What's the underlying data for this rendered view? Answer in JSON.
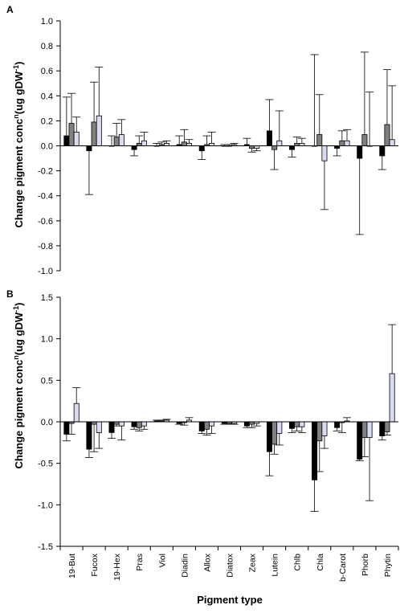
{
  "figure": {
    "xlabel": "Pigment type",
    "ylabel_main": "Change pigment conc",
    "ylabel_sup_n": "n",
    "ylabel_unit": "(ug gDW",
    "ylabel_sup_exp": "-1",
    "ylabel_close": ")"
  },
  "chart_data": [
    {
      "type": "bar",
      "panel": "A",
      "categories": [
        "19-But",
        "Fucox",
        "19-Hex",
        "Pras",
        "Viol",
        "Diadin",
        "Allox",
        "Diatox",
        "Zeax",
        "Lutein",
        "Chlb",
        "Chla",
        "b-Carot",
        "Phorb",
        "Phytin"
      ],
      "ylim": [
        -1.0,
        1.0
      ],
      "yticks": [
        -1.0,
        -0.8,
        -0.6,
        -0.4,
        -0.2,
        0.0,
        0.2,
        0.4,
        0.6,
        0.8,
        1.0
      ],
      "tick_labels": [
        "-1.0",
        "-0.8",
        "-0.6",
        "-0.4",
        "-0.2",
        "0.0",
        "0.2",
        "0.4",
        "0.6",
        "0.8",
        "1.0"
      ],
      "series": [
        {
          "color": "#000000",
          "values": [
            0.08,
            -0.04,
            0.0,
            -0.03,
            0.0,
            0.01,
            -0.04,
            0.0,
            0.01,
            0.12,
            -0.03,
            0.0,
            -0.02,
            -0.1,
            -0.08
          ],
          "errors": [
            0.31,
            0.35,
            0.08,
            0.05,
            0.02,
            0.07,
            0.07,
            0.01,
            0.05,
            0.25,
            0.06,
            0.73,
            0.06,
            0.61,
            0.11
          ]
        },
        {
          "color": "#808080",
          "values": [
            0.18,
            0.19,
            0.07,
            0.02,
            0.01,
            0.03,
            0.01,
            0.0,
            -0.02,
            -0.03,
            0.02,
            0.09,
            0.04,
            0.09,
            0.17
          ],
          "errors": [
            0.24,
            0.32,
            0.11,
            0.06,
            0.02,
            0.1,
            0.07,
            0.01,
            0.03,
            0.16,
            0.05,
            0.32,
            0.08,
            0.66,
            0.44
          ]
        },
        {
          "color": "#d9dcf0",
          "values": [
            0.11,
            0.24,
            0.09,
            0.04,
            0.02,
            0.02,
            0.02,
            0.01,
            -0.02,
            0.04,
            0.02,
            -0.12,
            0.04,
            0.0,
            0.05
          ],
          "errors": [
            0.12,
            0.39,
            0.12,
            0.07,
            0.02,
            0.03,
            0.09,
            0.01,
            0.02,
            0.24,
            0.04,
            0.39,
            0.09,
            0.43,
            0.43
          ]
        }
      ]
    },
    {
      "type": "bar",
      "panel": "B",
      "categories": [
        "19-But",
        "Fucox",
        "19-Hex",
        "Pras",
        "Viol",
        "Diadin",
        "Allox",
        "Diatox",
        "Zeax",
        "Lutein",
        "Chlb",
        "Chla",
        "b-Carot",
        "Phorb",
        "Phytin"
      ],
      "ylim": [
        -1.5,
        1.5
      ],
      "yticks": [
        -1.5,
        -1.0,
        -0.5,
        0.0,
        0.5,
        1.0,
        1.5
      ],
      "tick_labels": [
        "-1.5",
        "-1.0",
        "-0.5",
        "0.0",
        "0.5",
        "1.0",
        "1.5"
      ],
      "series": [
        {
          "color": "#000000",
          "values": [
            -0.15,
            -0.33,
            -0.13,
            -0.06,
            0.01,
            -0.02,
            -0.11,
            -0.02,
            -0.05,
            -0.36,
            -0.08,
            -0.7,
            -0.07,
            -0.45,
            -0.17
          ],
          "errors": [
            0.08,
            0.1,
            0.07,
            0.03,
            0.01,
            0.01,
            0.03,
            0.01,
            0.02,
            0.29,
            0.05,
            0.38,
            0.04,
            0.02,
            0.05
          ]
        },
        {
          "color": "#808080",
          "values": [
            -0.02,
            -0.03,
            -0.03,
            -0.07,
            0.01,
            -0.01,
            -0.09,
            -0.02,
            -0.03,
            -0.27,
            -0.06,
            -0.23,
            -0.01,
            -0.19,
            -0.12
          ],
          "errors": [
            0.13,
            0.33,
            0.02,
            0.04,
            0.01,
            0.03,
            0.07,
            0.01,
            0.04,
            0.12,
            0.05,
            0.37,
            0.12,
            0.23,
            0.04
          ]
        },
        {
          "color": "#d9dcf0",
          "values": [
            0.22,
            -0.13,
            -0.05,
            -0.05,
            0.02,
            0.02,
            -0.05,
            -0.02,
            -0.02,
            -0.14,
            -0.06,
            -0.17,
            0.01,
            -0.19,
            0.58
          ],
          "errors": [
            0.19,
            0.19,
            0.17,
            0.04,
            0.01,
            0.03,
            0.09,
            0.01,
            0.03,
            0.14,
            0.07,
            0.15,
            0.04,
            0.76,
            0.59
          ]
        }
      ]
    }
  ]
}
